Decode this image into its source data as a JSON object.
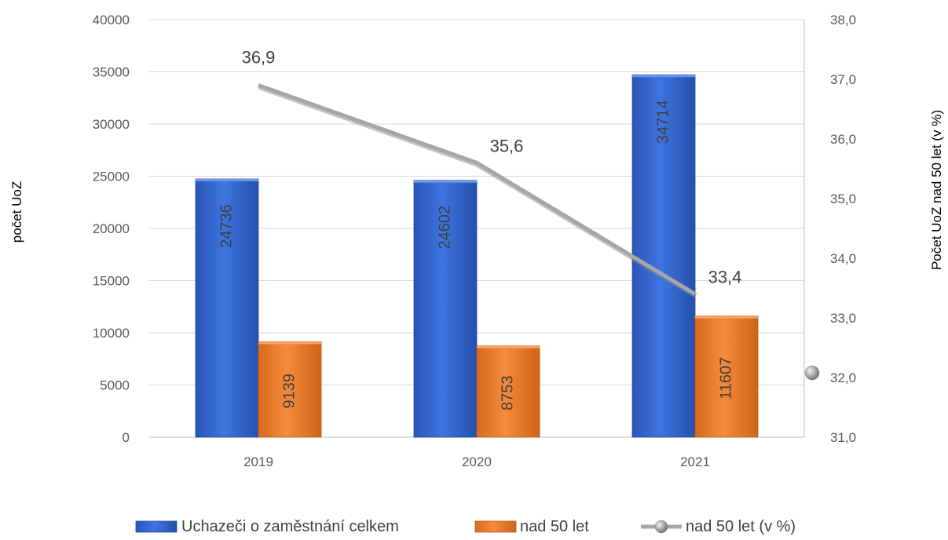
{
  "chart_data": {
    "type": "bar",
    "categories": [
      "2019",
      "2020",
      "2021"
    ],
    "series": [
      {
        "name": "Uchazeči o zaměstnání celkem",
        "type": "bar",
        "axis": "left",
        "values": [
          24736,
          24602,
          34714
        ],
        "color": "#2f61c8"
      },
      {
        "name": "nad 50 let",
        "type": "bar",
        "axis": "left",
        "values": [
          9139,
          8753,
          11607
        ],
        "color": "#ed7d31"
      },
      {
        "name": "nad 50 let (v %)",
        "type": "line",
        "axis": "right",
        "values": [
          36.9,
          35.6,
          33.4
        ],
        "labels": [
          "36,9",
          "35,6",
          "33,4"
        ],
        "color": "#a6a6a6"
      }
    ],
    "left_axis": {
      "label": "počet UoZ",
      "min": 0,
      "max": 40000,
      "step": 5000,
      "ticks": [
        "0",
        "5000",
        "10000",
        "15000",
        "20000",
        "25000",
        "30000",
        "35000",
        "40000"
      ]
    },
    "right_axis": {
      "label": "Počet UoZ nad 50 let (v %)",
      "min": 31.0,
      "max": 38.0,
      "step": 1.0,
      "ticks": [
        "31,0",
        "32,0",
        "33,0",
        "34,0",
        "35,0",
        "36,0",
        "37,0",
        "38,0"
      ]
    },
    "grid": true,
    "legend": "bottom"
  }
}
